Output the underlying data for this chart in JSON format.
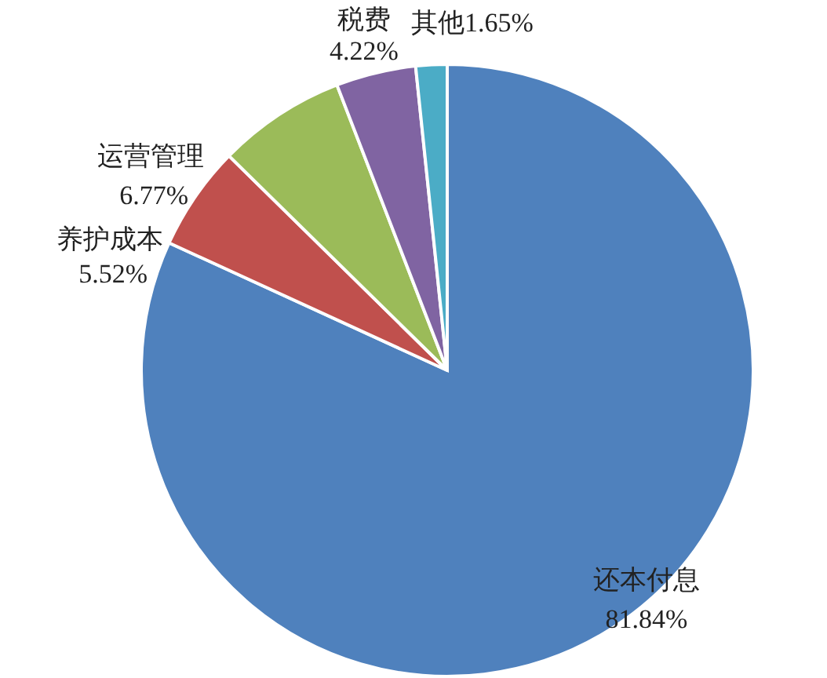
{
  "chart_data": {
    "type": "pie",
    "categories": [
      "还本付息",
      "养护成本",
      "运营管理",
      "税费",
      "其他"
    ],
    "values": [
      81.84,
      5.52,
      6.77,
      4.22,
      1.65
    ],
    "colors": [
      "#4f81bd",
      "#c0504d",
      "#9bbb59",
      "#8064a2",
      "#4bacc6"
    ],
    "value_labels": [
      "81.84%",
      "5.52%",
      "6.77%",
      "4.22%",
      "1.65%"
    ]
  }
}
